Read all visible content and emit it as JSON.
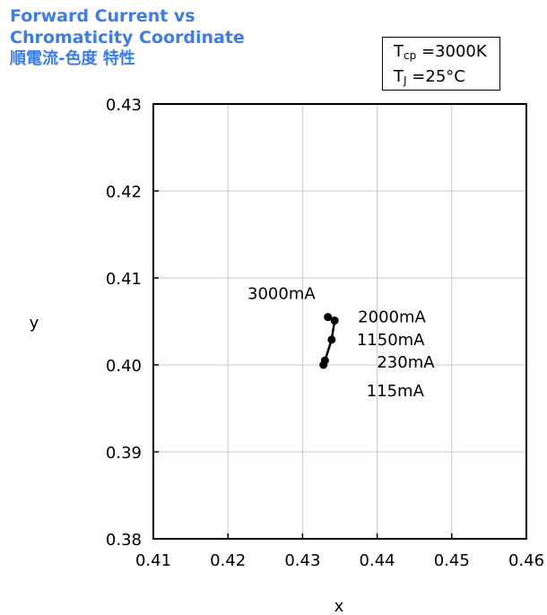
{
  "header": {
    "title_line1": "Forward Current vs",
    "title_line2": "Chromaticity Coordinate",
    "title_line3": "順電流-色度 特性"
  },
  "conditions": {
    "tcp_symbol": "T",
    "tcp_sub": "cp",
    "tcp_value": "=3000K",
    "tj_symbol": "T",
    "tj_sub": "J",
    "tj_value": "=25°C"
  },
  "chart_data": {
    "type": "line",
    "xlabel": "x",
    "ylabel": "y",
    "xlim": [
      0.41,
      0.46
    ],
    "ylim": [
      0.38,
      0.43
    ],
    "xticks": [
      "0.41",
      "0.42",
      "0.43",
      "0.44",
      "0.45",
      "0.46"
    ],
    "yticks": [
      "0.38",
      "0.39",
      "0.40",
      "0.41",
      "0.42",
      "0.43"
    ],
    "grid": true,
    "series": [
      {
        "points": [
          {
            "label": "115mA",
            "x": 0.4328,
            "y": 0.4
          },
          {
            "label": "230mA",
            "x": 0.433,
            "y": 0.4005
          },
          {
            "label": "1150mA",
            "x": 0.4339,
            "y": 0.4029
          },
          {
            "label": "2000mA",
            "x": 0.4343,
            "y": 0.4051
          },
          {
            "label": "3000mA",
            "x": 0.4334,
            "y": 0.4055
          }
        ]
      }
    ],
    "color": "#000000"
  }
}
